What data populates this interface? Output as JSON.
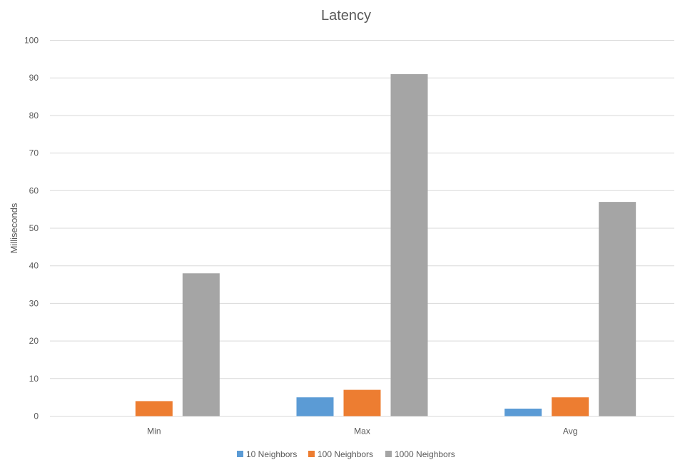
{
  "chart_data": {
    "type": "bar",
    "title": "Latency",
    "xlabel": "",
    "ylabel": "Milliseconds",
    "ylim": [
      0,
      100
    ],
    "yticks": [
      0,
      10,
      20,
      30,
      40,
      50,
      60,
      70,
      80,
      90,
      100
    ],
    "grid": true,
    "legend_position": "bottom",
    "categories": [
      "Min",
      "Max",
      "Avg"
    ],
    "series": [
      {
        "name": "10 Neighbors",
        "color": "#5b9bd5",
        "values": [
          0,
          5,
          2
        ]
      },
      {
        "name": "100 Neighbors",
        "color": "#ed7d31",
        "values": [
          4,
          7,
          5
        ]
      },
      {
        "name": "1000 Neighbors",
        "color": "#a5a5a5",
        "values": [
          38,
          91,
          57
        ]
      }
    ]
  }
}
